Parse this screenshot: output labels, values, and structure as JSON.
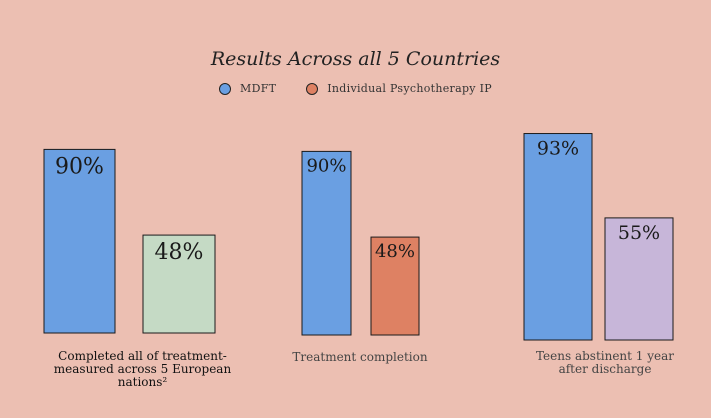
{
  "chart_data": {
    "type": "bar",
    "title": "Results Across all 5 Countries",
    "legend": {
      "placement": "top",
      "items": [
        {
          "label": "MDFT",
          "color": "#6a9fe2"
        },
        {
          "label": "Individual Psychotherapy IP",
          "color": "#de8163"
        }
      ]
    },
    "groups": [
      {
        "caption": "Completed all of treatment-measured across 5 European nations²",
        "bars": [
          {
            "value": 90,
            "label": "90%",
            "color": "#6a9fe2"
          },
          {
            "value": 48,
            "label": "48%",
            "color": "#c5dac5"
          }
        ]
      },
      {
        "caption": "Treatment completion",
        "bars": [
          {
            "value": 90,
            "label": "90%",
            "color": "#6a9fe2"
          },
          {
            "value": 48,
            "label": "48%",
            "color": "#de8163"
          }
        ]
      },
      {
        "caption": "Teens abstinent 1 year after discharge",
        "bars": [
          {
            "value": 93,
            "label": "93%",
            "color": "#6a9fe2"
          },
          {
            "value": 55,
            "label": "55%",
            "color": "#c7b6d9"
          }
        ]
      }
    ],
    "ylim": [
      0,
      100
    ],
    "grid": false
  }
}
